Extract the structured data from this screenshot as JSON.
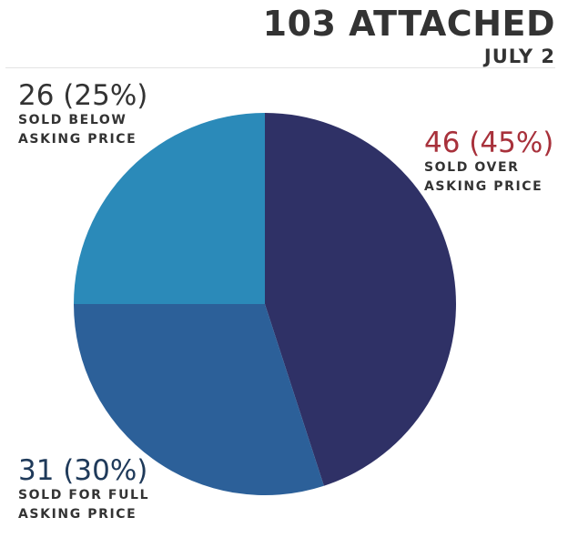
{
  "chart_data": {
    "type": "pie",
    "title": "103 ATTACHED",
    "subtitle": "JULY 2",
    "slices": [
      {
        "label_line1": "SOLD OVER",
        "label_line2": "ASKING PRICE",
        "count": 46,
        "percent": 45,
        "value_text": "46 (45%)",
        "color": "#2f3166"
      },
      {
        "label_line1": "SOLD FOR FULL",
        "label_line2": "ASKING PRICE",
        "count": 31,
        "percent": 30,
        "value_text": "31 (30%)",
        "color": "#2c6099"
      },
      {
        "label_line1": "SOLD BELOW",
        "label_line2": "ASKING PRICE",
        "count": 26,
        "percent": 25,
        "value_text": "26 (25%)",
        "color": "#2b8ab9"
      }
    ],
    "start_angle_deg": 0,
    "direction": "clockwise"
  }
}
